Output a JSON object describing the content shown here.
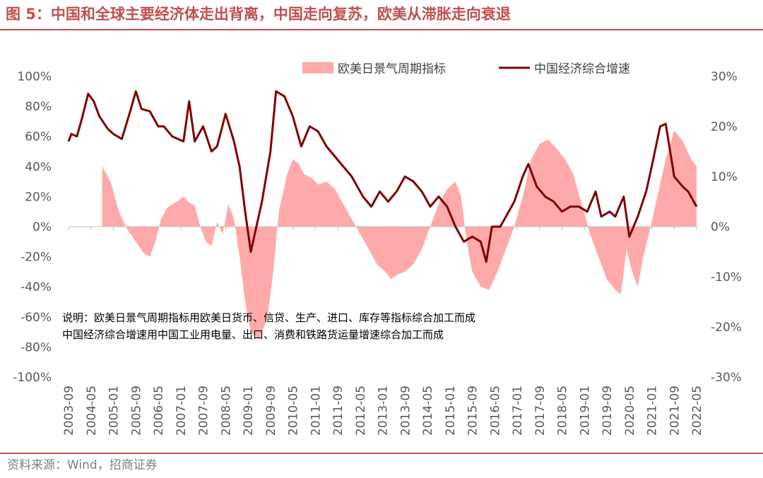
{
  "figure": {
    "title": "图 5：中国和全球主要经济体走出背离，中国走向复苏，欧美从滞胀走向衰退",
    "source": "资料来源：Wind，招商证券"
  },
  "chart_data": {
    "type": "area+line",
    "title": "图 5：中国和全球主要经济体走出背离，中国走向复苏，欧美从滞胀走向衰退",
    "series": [
      {
        "name": "欧美日景气周期指标",
        "kind": "area",
        "axis": "left",
        "color": "#ffaaaa",
        "points": [
          [
            "2004-09",
            40
          ],
          [
            "2004-12",
            30
          ],
          [
            "2005-03",
            10
          ],
          [
            "2005-06",
            -2
          ],
          [
            "2005-09",
            -10
          ],
          [
            "2005-12",
            -18
          ],
          [
            "2006-02",
            -20
          ],
          [
            "2006-04",
            -10
          ],
          [
            "2006-06",
            5
          ],
          [
            "2006-08",
            12
          ],
          [
            "2006-10",
            15
          ],
          [
            "2006-12",
            17
          ],
          [
            "2007-02",
            20
          ],
          [
            "2007-04",
            16
          ],
          [
            "2007-06",
            14
          ],
          [
            "2007-08",
            0
          ],
          [
            "2007-10",
            -10
          ],
          [
            "2007-12",
            -13
          ],
          [
            "2008-02",
            3
          ],
          [
            "2008-04",
            -5
          ],
          [
            "2008-06",
            15
          ],
          [
            "2008-08",
            5
          ],
          [
            "2008-10",
            -20
          ],
          [
            "2008-12",
            -50
          ],
          [
            "2009-02",
            -70
          ],
          [
            "2009-05",
            -75
          ],
          [
            "2009-08",
            -60
          ],
          [
            "2009-10",
            -30
          ],
          [
            "2009-12",
            10
          ],
          [
            "2010-03",
            35
          ],
          [
            "2010-05",
            45
          ],
          [
            "2010-07",
            42
          ],
          [
            "2010-09",
            35
          ],
          [
            "2010-12",
            32
          ],
          [
            "2011-02",
            28
          ],
          [
            "2011-05",
            30
          ],
          [
            "2011-08",
            25
          ],
          [
            "2011-11",
            15
          ],
          [
            "2012-02",
            5
          ],
          [
            "2012-05",
            -5
          ],
          [
            "2012-08",
            -15
          ],
          [
            "2012-11",
            -25
          ],
          [
            "2013-02",
            -30
          ],
          [
            "2013-04",
            -35
          ],
          [
            "2013-06",
            -32
          ],
          [
            "2013-09",
            -30
          ],
          [
            "2013-12",
            -25
          ],
          [
            "2014-03",
            -15
          ],
          [
            "2014-06",
            0
          ],
          [
            "2014-09",
            15
          ],
          [
            "2014-12",
            25
          ],
          [
            "2015-03",
            30
          ],
          [
            "2015-05",
            20
          ],
          [
            "2015-07",
            -10
          ],
          [
            "2015-09",
            -30
          ],
          [
            "2015-12",
            -40
          ],
          [
            "2016-03",
            -42
          ],
          [
            "2016-06",
            -30
          ],
          [
            "2016-09",
            -15
          ],
          [
            "2016-12",
            0
          ],
          [
            "2017-03",
            20
          ],
          [
            "2017-06",
            45
          ],
          [
            "2017-09",
            55
          ],
          [
            "2017-12",
            58
          ],
          [
            "2018-03",
            52
          ],
          [
            "2018-06",
            45
          ],
          [
            "2018-09",
            35
          ],
          [
            "2018-12",
            15
          ],
          [
            "2019-03",
            -5
          ],
          [
            "2019-06",
            -20
          ],
          [
            "2019-09",
            -35
          ],
          [
            "2019-12",
            -42
          ],
          [
            "2020-02",
            -45
          ],
          [
            "2020-04",
            -15
          ],
          [
            "2020-06",
            -30
          ],
          [
            "2020-08",
            -40
          ],
          [
            "2020-10",
            -20
          ],
          [
            "2020-12",
            -5
          ],
          [
            "2021-03",
            20
          ],
          [
            "2021-06",
            45
          ],
          [
            "2021-09",
            64
          ],
          [
            "2021-12",
            57
          ],
          [
            "2022-03",
            45
          ],
          [
            "2022-05",
            40
          ]
        ]
      },
      {
        "name": "中国经济综合增速",
        "kind": "line",
        "axis": "right",
        "color": "#7f0000",
        "points": [
          [
            "2003-09",
            17
          ],
          [
            "2003-10",
            18.5
          ],
          [
            "2003-12",
            18
          ],
          [
            "2004-02",
            22
          ],
          [
            "2004-04",
            26.5
          ],
          [
            "2004-06",
            25
          ],
          [
            "2004-08",
            22
          ],
          [
            "2004-11",
            19.5
          ],
          [
            "2005-01",
            18.5
          ],
          [
            "2005-04",
            17.5
          ],
          [
            "2005-07",
            23
          ],
          [
            "2005-09",
            27
          ],
          [
            "2005-11",
            23.5
          ],
          [
            "2006-02",
            23
          ],
          [
            "2006-05",
            20
          ],
          [
            "2006-07",
            20
          ],
          [
            "2006-10",
            18
          ],
          [
            "2006-12",
            17.5
          ],
          [
            "2007-02",
            17
          ],
          [
            "2007-04",
            25
          ],
          [
            "2007-06",
            17
          ],
          [
            "2007-09",
            20
          ],
          [
            "2007-12",
            15
          ],
          [
            "2008-02",
            16
          ],
          [
            "2008-05",
            22.5
          ],
          [
            "2008-08",
            17
          ],
          [
            "2008-10",
            12
          ],
          [
            "2008-12",
            3
          ],
          [
            "2009-02",
            -5
          ],
          [
            "2009-04",
            0
          ],
          [
            "2009-06",
            5
          ],
          [
            "2009-09",
            15
          ],
          [
            "2009-11",
            27
          ],
          [
            "2010-02",
            26
          ],
          [
            "2010-05",
            22
          ],
          [
            "2010-08",
            16
          ],
          [
            "2010-11",
            20
          ],
          [
            "2011-02",
            19
          ],
          [
            "2011-05",
            16
          ],
          [
            "2011-08",
            14
          ],
          [
            "2011-11",
            12
          ],
          [
            "2012-02",
            10
          ],
          [
            "2012-04",
            8
          ],
          [
            "2012-06",
            6
          ],
          [
            "2012-09",
            4
          ],
          [
            "2012-12",
            7
          ],
          [
            "2013-03",
            5
          ],
          [
            "2013-06",
            7
          ],
          [
            "2013-09",
            10
          ],
          [
            "2013-12",
            9
          ],
          [
            "2014-03",
            7
          ],
          [
            "2014-06",
            4
          ],
          [
            "2014-09",
            6
          ],
          [
            "2014-12",
            4
          ],
          [
            "2015-03",
            0
          ],
          [
            "2015-06",
            -3
          ],
          [
            "2015-09",
            -2
          ],
          [
            "2015-12",
            -3
          ],
          [
            "2016-02",
            -7
          ],
          [
            "2016-04",
            0
          ],
          [
            "2016-07",
            0
          ],
          [
            "2016-10",
            3
          ],
          [
            "2016-12",
            5
          ],
          [
            "2017-03",
            10
          ],
          [
            "2017-05",
            12.5
          ],
          [
            "2017-08",
            8
          ],
          [
            "2017-11",
            6
          ],
          [
            "2018-02",
            5
          ],
          [
            "2018-05",
            3
          ],
          [
            "2018-08",
            4
          ],
          [
            "2018-11",
            4
          ],
          [
            "2019-02",
            3
          ],
          [
            "2019-05",
            7
          ],
          [
            "2019-07",
            2
          ],
          [
            "2019-10",
            3
          ],
          [
            "2019-12",
            2
          ],
          [
            "2020-03",
            6
          ],
          [
            "2020-05",
            -2
          ],
          [
            "2020-08",
            2
          ],
          [
            "2020-11",
            7
          ],
          [
            "2021-01",
            12
          ],
          [
            "2021-04",
            20
          ],
          [
            "2021-06",
            20.5
          ],
          [
            "2021-09",
            10
          ],
          [
            "2021-12",
            8
          ],
          [
            "2022-02",
            7
          ],
          [
            "2022-04",
            5
          ],
          [
            "2022-05",
            4
          ]
        ]
      }
    ],
    "axes": {
      "left": {
        "range": [
          -100,
          100
        ],
        "ticks": [
          "100%",
          "80%",
          "60%",
          "40%",
          "20%",
          "0%",
          "-20%",
          "-40%",
          "-60%",
          "-80%",
          "-100%"
        ]
      },
      "right": {
        "range": [
          -30,
          30
        ],
        "ticks": [
          "30%",
          "20%",
          "10%",
          "0%",
          "-10%",
          "-20%",
          "-30%"
        ]
      },
      "x": {
        "start": "2003-09",
        "end": "2022-05",
        "ticks": [
          "2003-09",
          "2004-05",
          "2005-01",
          "2005-09",
          "2006-05",
          "2007-01",
          "2007-09",
          "2008-05",
          "2009-01",
          "2009-09",
          "2010-05",
          "2011-01",
          "2011-09",
          "2012-05",
          "2013-01",
          "2013-09",
          "2014-05",
          "2015-01",
          "2015-09",
          "2016-05",
          "2017-01",
          "2017-09",
          "2018-05",
          "2019-01",
          "2019-09",
          "2020-05",
          "2021-01",
          "2021-09",
          "2022-05"
        ]
      }
    },
    "legend": [
      {
        "label": "欧美日景气周期指标",
        "kind": "area"
      },
      {
        "label": "中国经济综合增速",
        "kind": "line"
      }
    ],
    "notes": [
      "说明：欧美日景气周期指标用欧美日货币、信贷、生产、进口、库存等指标综合加工而成",
      "中国经济综合增速用中国工业用电量、出口、消费和铁路货运量增速综合加工而成"
    ]
  }
}
